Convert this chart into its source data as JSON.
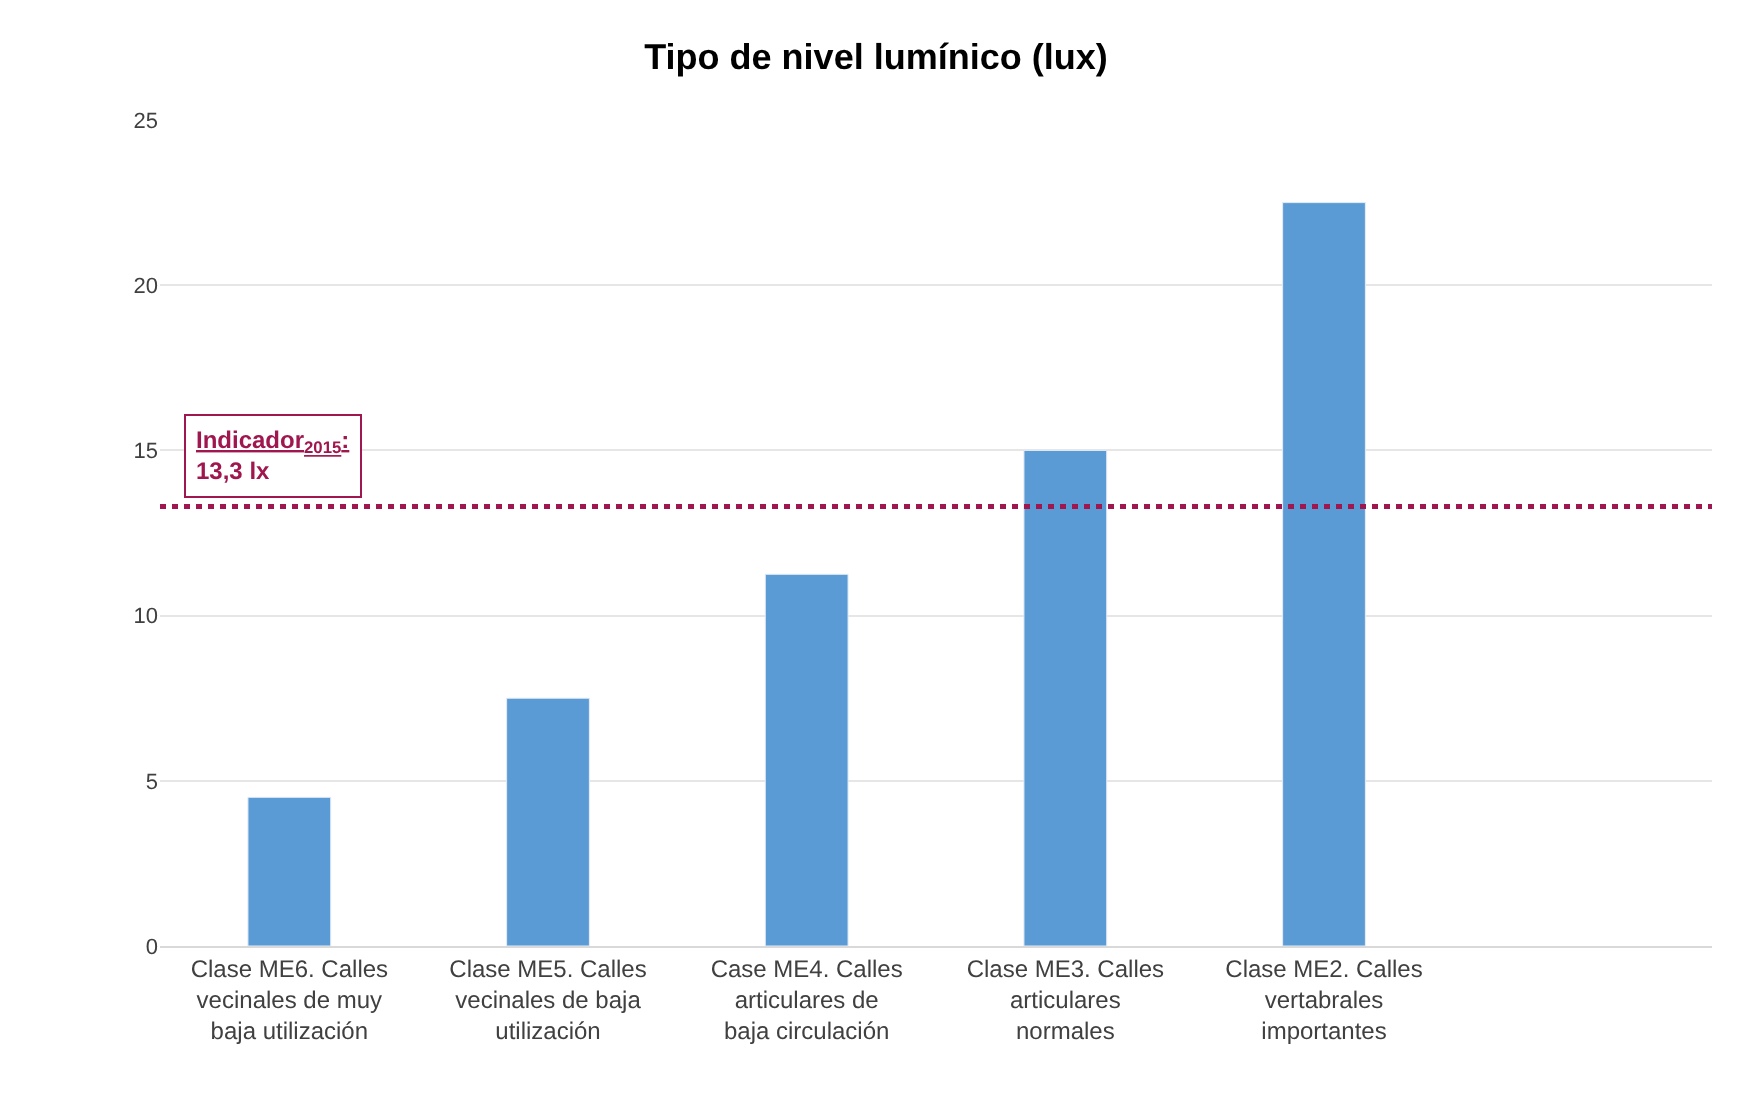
{
  "chart_data": {
    "type": "bar",
    "title": "Tipo de nivel lumínico (lux)",
    "categories": [
      "Clase ME6. Calles vecinales de muy baja utilización",
      "Clase ME5. Calles vecinales de baja utilización",
      "Case ME4. Calles articulares de baja circulación",
      "Clase ME3. Calles articulares normales",
      "Clase ME2. Calles vertabrales importantes",
      null
    ],
    "values": [
      4.5,
      7.5,
      11.25,
      15,
      22.5,
      null
    ],
    "color": "#5b9bd5",
    "ylim": [
      0,
      25
    ],
    "yticks": [
      0,
      5,
      10,
      15,
      20,
      25
    ],
    "grid": "y",
    "ref_lines": [
      {
        "axis": "y",
        "value": 13.3,
        "label": "Indicador$_{2015}$:\n13,3 lx",
        "color": "#a0174f",
        "line_style": "dotted"
      }
    ]
  }
}
